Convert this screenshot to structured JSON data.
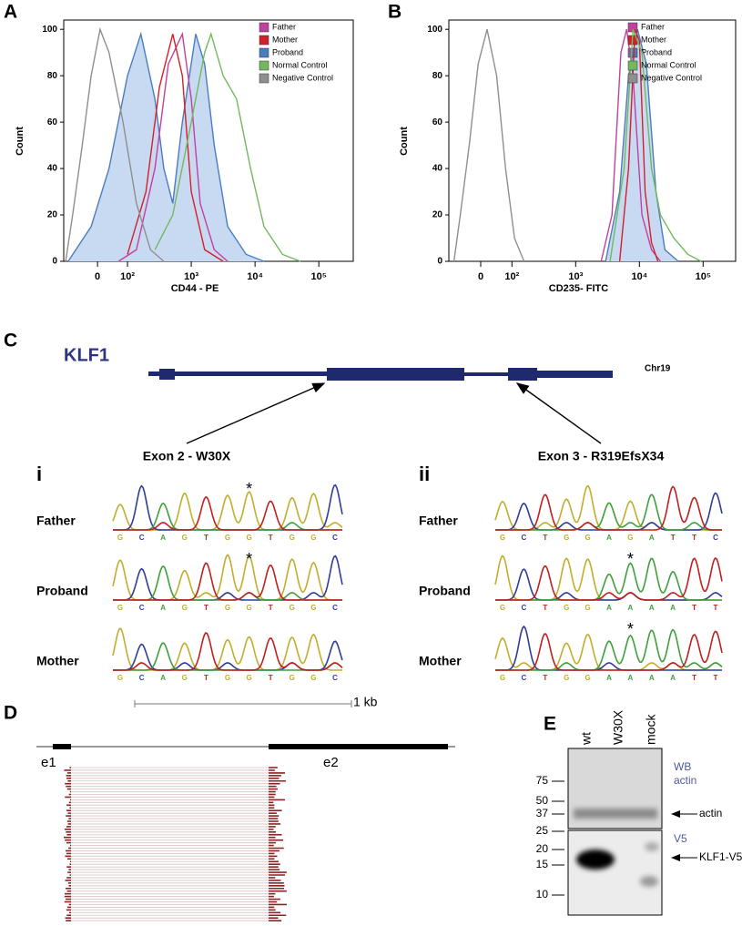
{
  "chart_data": [
    {
      "type": "line",
      "panel": "A",
      "ylabel": "Count",
      "xlabel": "CD44 - PE",
      "xlim": [
        1.0,
        5.54
      ],
      "ylim": [
        0,
        104
      ],
      "xticks": [
        {
          "value": 1.53,
          "label": "0"
        },
        {
          "value": 2,
          "label": "10²"
        },
        {
          "value": 3,
          "label": "10³"
        },
        {
          "value": 4,
          "label": "10⁴"
        },
        {
          "value": 5,
          "label": "10⁵"
        }
      ],
      "yticks": [
        0,
        20,
        40,
        60,
        80,
        100
      ],
      "series": [
        {
          "name": "Father",
          "color": "#c2409e",
          "x": [
            1.86,
            2.14,
            2.43,
            2.64,
            2.86,
            3.0,
            3.14,
            3.36,
            3.57
          ],
          "values": [
            0,
            5,
            40,
            85,
            98,
            70,
            25,
            5,
            0
          ]
        },
        {
          "name": "Mother",
          "color": "#d3202c",
          "x": [
            2.0,
            2.29,
            2.5,
            2.71,
            2.86,
            3.0,
            3.21,
            3.5
          ],
          "values": [
            3,
            30,
            75,
            98,
            80,
            30,
            5,
            0
          ]
        },
        {
          "name": "Proband",
          "color": "#4a7cc0",
          "fill": "#c8daf2",
          "x": [
            1.07,
            1.43,
            1.71,
            2.0,
            2.21,
            2.43,
            2.57,
            2.71,
            2.86,
            3.07,
            3.21,
            3.36,
            3.57,
            3.86,
            4.14
          ],
          "values": [
            0,
            15,
            40,
            80,
            98,
            70,
            40,
            25,
            60,
            98,
            85,
            50,
            15,
            3,
            0
          ]
        },
        {
          "name": "Normal Control",
          "color": "#72b85e",
          "x": [
            2.43,
            2.71,
            3.0,
            3.21,
            3.31,
            3.5,
            3.71,
            3.93,
            4.14,
            4.43,
            4.71
          ],
          "values": [
            5,
            20,
            60,
            90,
            98,
            80,
            70,
            40,
            15,
            3,
            0
          ]
        },
        {
          "name": "Negative Control",
          "color": "#8f8f8f",
          "x": [
            1.03,
            1.14,
            1.29,
            1.43,
            1.57,
            1.71,
            1.93,
            2.14,
            2.36,
            2.57
          ],
          "values": [
            0,
            20,
            50,
            80,
            100,
            90,
            60,
            25,
            5,
            0
          ]
        }
      ]
    },
    {
      "type": "line",
      "panel": "B",
      "ylabel": "Count",
      "xlabel": "CD235- FITC",
      "xlim": [
        1.01,
        5.51
      ],
      "ylim": [
        0,
        104
      ],
      "xticks": [
        {
          "value": 1.51,
          "label": "0"
        },
        {
          "value": 2,
          "label": "10²"
        },
        {
          "value": 3,
          "label": "10³"
        },
        {
          "value": 4,
          "label": "10⁴"
        },
        {
          "value": 5,
          "label": "10⁵"
        }
      ],
      "yticks": [
        0,
        20,
        40,
        60,
        80,
        100
      ],
      "series": [
        {
          "name": "Father",
          "color": "#c2409e",
          "x": [
            3.4,
            3.57,
            3.71,
            3.8,
            3.9,
            4.04,
            4.19,
            4.33
          ],
          "values": [
            0,
            20,
            90,
            100,
            80,
            20,
            5,
            0
          ]
        },
        {
          "name": "Mother",
          "color": "#d3202c",
          "x": [
            3.69,
            3.83,
            3.93,
            4.0,
            4.09,
            4.19,
            4.29
          ],
          "values": [
            0,
            40,
            100,
            95,
            30,
            8,
            0
          ]
        },
        {
          "name": "Proband",
          "color": "#4a7cc0",
          "fill": "#c8daf2",
          "x": [
            3.47,
            3.69,
            3.83,
            3.97,
            4.11,
            4.26,
            4.4,
            4.61
          ],
          "values": [
            0,
            30,
            80,
            100,
            85,
            30,
            5,
            0
          ]
        },
        {
          "name": "Normal Control",
          "color": "#72b85e",
          "x": [
            3.54,
            3.76,
            3.9,
            4.04,
            4.19,
            4.33,
            4.54,
            4.76,
            4.97
          ],
          "values": [
            0,
            40,
            100,
            90,
            40,
            20,
            10,
            3,
            0
          ]
        },
        {
          "name": "Negative Control",
          "color": "#8f8f8f",
          "x": [
            1.09,
            1.19,
            1.33,
            1.47,
            1.61,
            1.76,
            1.9,
            2.04,
            2.19
          ],
          "values": [
            0,
            20,
            50,
            85,
            100,
            80,
            40,
            10,
            0
          ]
        }
      ]
    }
  ],
  "panel_c": {
    "letter": "C",
    "gene": "KLF1",
    "chromosome": "Chr19",
    "mutations": [
      {
        "roman": "i",
        "label": "Exon 2 - W30X",
        "rows": [
          {
            "name": "Father",
            "bases": [
              "G",
              "C",
              "A",
              "G",
              "T",
              "G",
              "G",
              "T",
              "G",
              "G",
              "C"
            ],
            "star": "*"
          },
          {
            "name": "Proband",
            "bases": [
              "G",
              "C",
              "A",
              "G",
              "T",
              "G",
              "G",
              "T",
              "G",
              "G",
              "C"
            ],
            "star": "*"
          },
          {
            "name": "Mother",
            "bases": [
              "G",
              "C",
              "A",
              "G",
              "T",
              "G",
              "G",
              "T",
              "G",
              "G",
              "C"
            ]
          }
        ]
      },
      {
        "roman": "ii",
        "label": "Exon 3 - R319EfsX34",
        "rows": [
          {
            "name": "Father",
            "bases": [
              "G",
              "C",
              "T",
              "G",
              "G",
              "A",
              "G",
              "A",
              "T",
              "T",
              "C"
            ]
          },
          {
            "name": "Proband",
            "bases": [
              "G",
              "C",
              "T",
              "G",
              "G",
              "A",
              "A",
              "A",
              "A",
              "T",
              "T"
            ],
            "star": "*"
          },
          {
            "name": "Mother",
            "bases": [
              "G",
              "C",
              "T",
              "G",
              "G",
              "A",
              "A",
              "A",
              "A",
              "T",
              "T"
            ],
            "star": "*"
          }
        ]
      }
    ]
  },
  "panel_d": {
    "letter": "D",
    "scale": "1 kb",
    "exons": [
      "e1",
      "e2"
    ]
  },
  "panel_e": {
    "letter": "E",
    "lanes": [
      "wt",
      "W30X",
      "mock"
    ],
    "markers": [
      "75",
      "50",
      "37",
      "25",
      "20",
      "15",
      "10"
    ],
    "probe_top": [
      "WB",
      "actin"
    ],
    "probe_bottom": "V5",
    "bands": [
      "actin",
      "KLF1-V5"
    ]
  }
}
